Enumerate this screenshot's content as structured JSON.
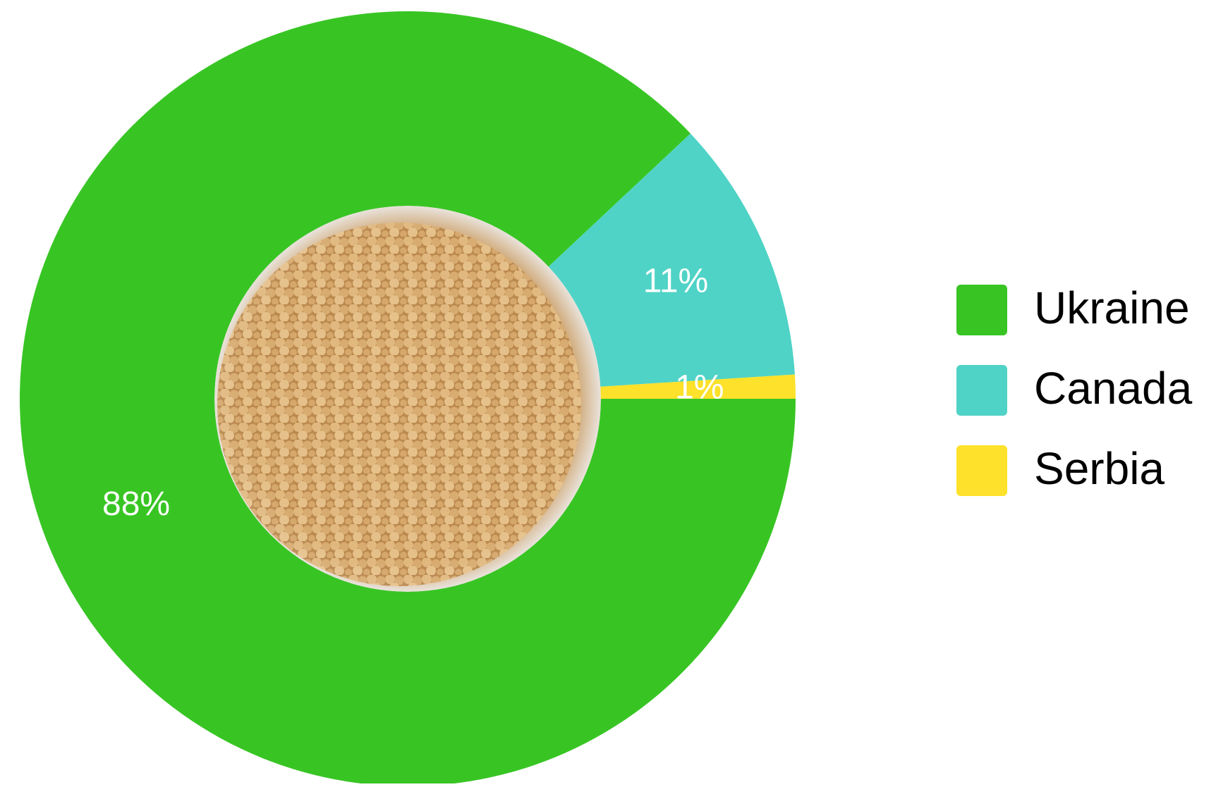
{
  "chart_data": {
    "type": "donut",
    "categories": [
      "Ukraine",
      "Canada",
      "Serbia"
    ],
    "values": [
      88,
      11,
      1
    ],
    "value_labels": [
      "88%",
      "11%",
      "1%"
    ],
    "colors": [
      "#38c524",
      "#4fd3c6",
      "#fde12a"
    ],
    "legend": "right"
  }
}
